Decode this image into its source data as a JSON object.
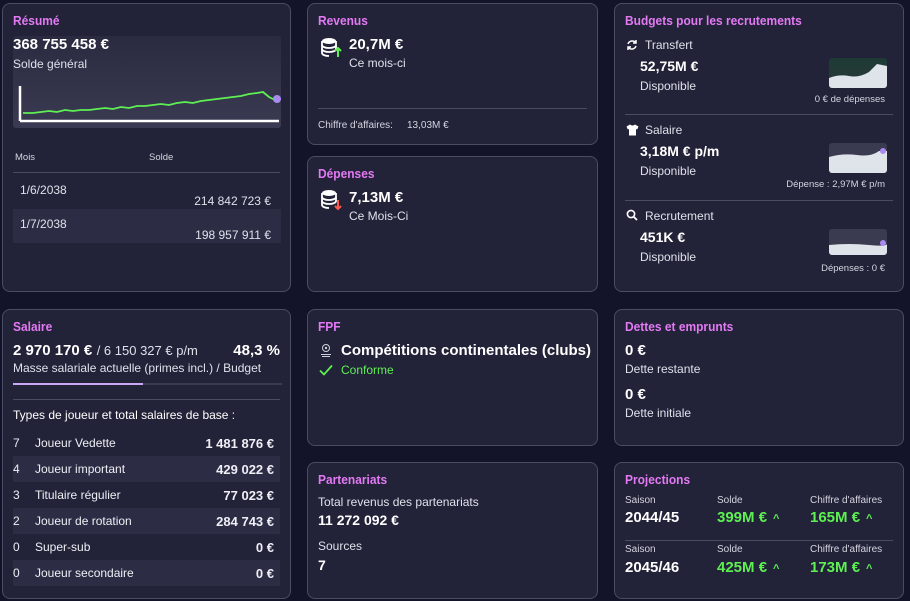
{
  "resume": {
    "title": "Résumé",
    "amount": "368 755 458 €",
    "label": "Solde général",
    "table_headers": [
      "Mois",
      "Solde"
    ],
    "rows": [
      {
        "month": "1/6/2038",
        "balance": "214 842 723 €"
      },
      {
        "month": "1/7/2038",
        "balance": "198 957 911 €"
      }
    ]
  },
  "revenus": {
    "title": "Revenus",
    "amount": "20,7M €",
    "period": "Ce mois-ci",
    "ca_label": "Chiffre d'affaires:",
    "ca_value": "13,03M €"
  },
  "depenses": {
    "title": "Dépenses",
    "amount": "7,13M €",
    "period": "Ce Mois-Ci"
  },
  "budgets": {
    "title": "Budgets pour les recrutements",
    "items": [
      {
        "icon": "refresh-icon",
        "label": "Transfert",
        "amount": "52,75M €",
        "status": "Disponible",
        "note": "0 € de dépenses"
      },
      {
        "icon": "shirt-icon",
        "label": "Salaire",
        "amount": "3,18M € p/m",
        "status": "Disponible",
        "note": "Dépense : 2,97M € p/m"
      },
      {
        "icon": "search-icon",
        "label": "Recrutement",
        "amount": "451K €",
        "status": "Disponible",
        "note": "Dépenses : 0 €"
      }
    ]
  },
  "salaire": {
    "title": "Salaire",
    "amount": "2 970 170 €",
    "budget": "/ 6 150 327 € p/m",
    "percent": "48,3 %",
    "label": "Masse salariale actuelle (primes incl.) / Budget",
    "progress": 0.483,
    "types_header": "Types de joueur et total salaires de base :",
    "types": [
      {
        "count": "7",
        "name": "Joueur Vedette",
        "value": "1 481 876 €"
      },
      {
        "count": "4",
        "name": "Joueur important",
        "value": "429 022 €"
      },
      {
        "count": "3",
        "name": "Titulaire régulier",
        "value": "77 023 €"
      },
      {
        "count": "2",
        "name": "Joueur de rotation",
        "value": "284 743 €"
      },
      {
        "count": "0",
        "name": "Super-sub",
        "value": "0 €"
      },
      {
        "count": "0",
        "name": "Joueur secondaire",
        "value": "0 €"
      }
    ]
  },
  "fpf": {
    "title": "FPF",
    "competition": "Compétitions continentales (clubs)",
    "status": "Conforme"
  },
  "dettes": {
    "title": "Dettes et emprunts",
    "remaining_amount": "0 €",
    "remaining_label": "Dette restante",
    "initial_amount": "0 €",
    "initial_label": "Dette initiale"
  },
  "partenariats": {
    "title": "Partenariats",
    "total_label": "Total revenus des partenariats",
    "total_value": "11 272 092 €",
    "sources_label": "Sources",
    "sources_value": "7"
  },
  "projections": {
    "title": "Projections",
    "col_labels": [
      "Saison",
      "Solde",
      "Chiffre d'affaires"
    ],
    "rows": [
      {
        "season": "2044/45",
        "balance": "399M €",
        "revenue": "165M €"
      },
      {
        "season": "2045/46",
        "balance": "425M €",
        "revenue": "173M €"
      }
    ]
  },
  "colors": {
    "accent": "#e37af4",
    "positive": "#5ef053",
    "card_bg": "#222238",
    "page_bg": "#13132a"
  }
}
